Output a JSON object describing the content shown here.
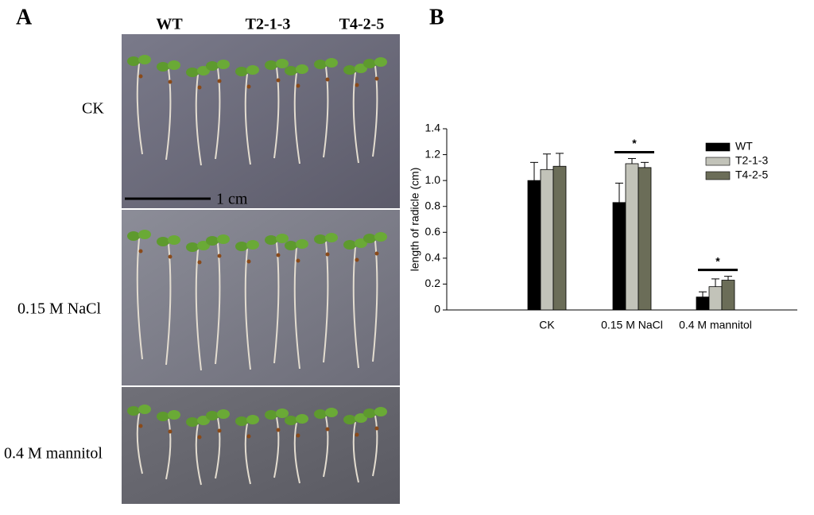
{
  "panel_a": {
    "label": "A",
    "columns": [
      "WT",
      "T2-1-3",
      "T4-2-5"
    ],
    "rows": [
      "CK",
      "0.15 M NaCl",
      "0.4 M mannitol"
    ],
    "scale_bar": "1 cm"
  },
  "panel_b": {
    "label": "B"
  },
  "chart_data": {
    "type": "bar",
    "y_label": "length of radicle (cm)",
    "categories": [
      "CK",
      "0.15 M NaCl",
      "0.4 M mannitol"
    ],
    "series": [
      {
        "name": "WT",
        "color": "#000000",
        "values": [
          1.0,
          0.83,
          0.1
        ],
        "errors": [
          0.14,
          0.15,
          0.04
        ]
      },
      {
        "name": "T2-1-3",
        "color": "#c2c3b9",
        "values": [
          1.085,
          1.13,
          0.18
        ],
        "errors": [
          0.12,
          0.04,
          0.06
        ]
      },
      {
        "name": "T4-2-5",
        "color": "#6b6d58",
        "values": [
          1.11,
          1.1,
          0.23
        ],
        "errors": [
          0.1,
          0.04,
          0.03
        ]
      }
    ],
    "significance": [
      null,
      "*",
      "*"
    ],
    "ylim": [
      0,
      1.4
    ],
    "yticks": [
      0,
      0.2,
      0.4,
      0.6,
      0.8,
      {
        "value": 1,
        "label": "1.0"
      },
      1.2,
      1.4
    ]
  }
}
